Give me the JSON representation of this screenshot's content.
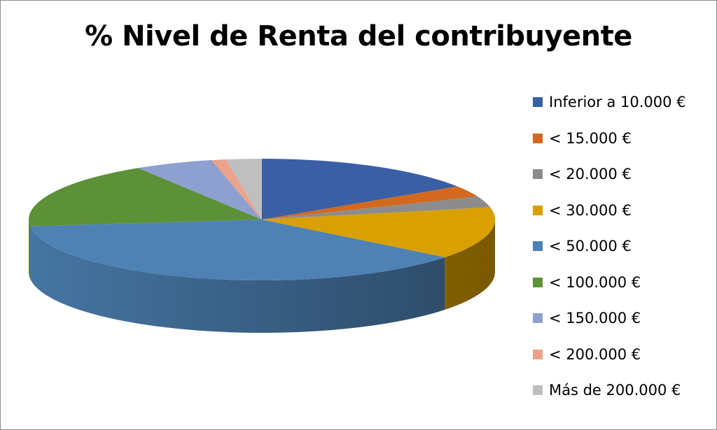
{
  "chart_data": {
    "type": "pie",
    "title": "% Nivel de Renta del contribuyente",
    "categories": [
      "Inferior a 10.000 €",
      "< 15.000 €",
      "< 20.000 €",
      "< 30.000 €",
      "< 50.000 €",
      "< 100.000 €",
      "< 150.000 €",
      "< 200.000 €",
      "Más de 200.000 €"
    ],
    "values": [
      16,
      3,
      3,
      14,
      38,
      18,
      5.5,
      1,
      2.5
    ],
    "unit": "%",
    "colors": [
      "#3A5FA5",
      "#D2691E",
      "#8C8C8C",
      "#D9A000",
      "#4E82B4",
      "#5C9138",
      "#8EA0CF",
      "#EDA28A",
      "#BFBFBF"
    ],
    "style": "3d",
    "legend_position": "right"
  }
}
